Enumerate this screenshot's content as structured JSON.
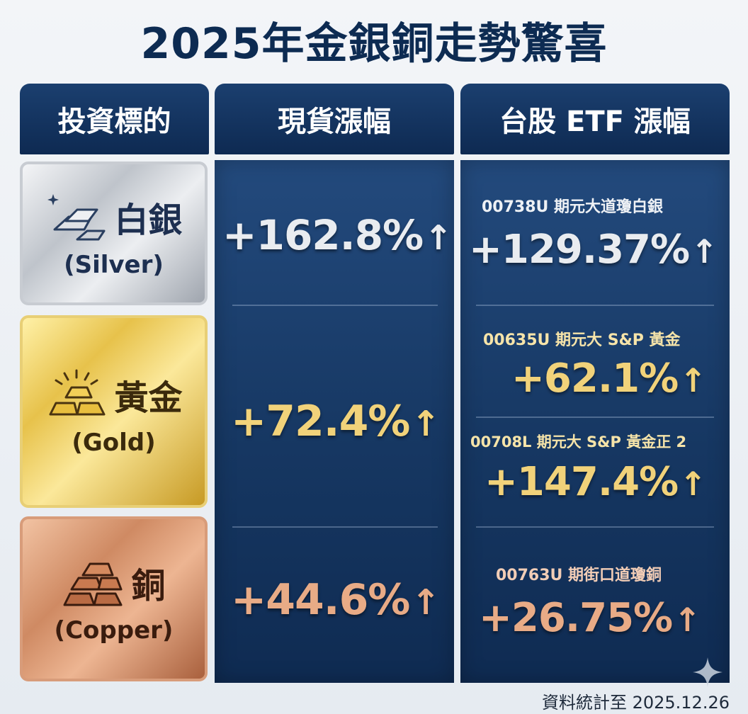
{
  "title": "2025年金銀銅走勢驚喜",
  "headers": {
    "asset": "投資標的",
    "spot": "現貨漲幅",
    "etf": "台股 ETF 漲幅"
  },
  "assets": [
    {
      "name_cn": "白銀",
      "name_en": "(Silver)",
      "spot_change": "+162.8%",
      "etfs": [
        {
          "label": "00738U 期元大道瓊白銀",
          "change": "+129.37%"
        }
      ]
    },
    {
      "name_cn": "黃金",
      "name_en": "(Gold)",
      "spot_change": "+72.4%",
      "etfs": [
        {
          "label": "00635U 期元大 S&P 黃金",
          "change": "+62.1%"
        },
        {
          "label": "00708L 期元大 S&P 黃金正 2",
          "change": "+147.4%"
        }
      ]
    },
    {
      "name_cn": "銅",
      "name_en": "(Copper)",
      "spot_change": "+44.6%",
      "etfs": [
        {
          "label": "00763U 期街口道瓊銅",
          "change": "+26.75%"
        }
      ]
    }
  ],
  "arrow_glyph": "↑",
  "footnote": "資料統計至 2025.12.26",
  "colors": {
    "header_bg": "#163a68",
    "panel_bg": "#1a3f6e",
    "title": "#0d2b52",
    "silver_text": "#e9ecf0",
    "gold_text": "#f1d27a",
    "copper_text": "#e8ab86"
  },
  "icons": [
    "sparkle-icon",
    "silver-bars-icon",
    "gold-bars-icon",
    "copper-bars-icon",
    "up-arrow-icon"
  ]
}
